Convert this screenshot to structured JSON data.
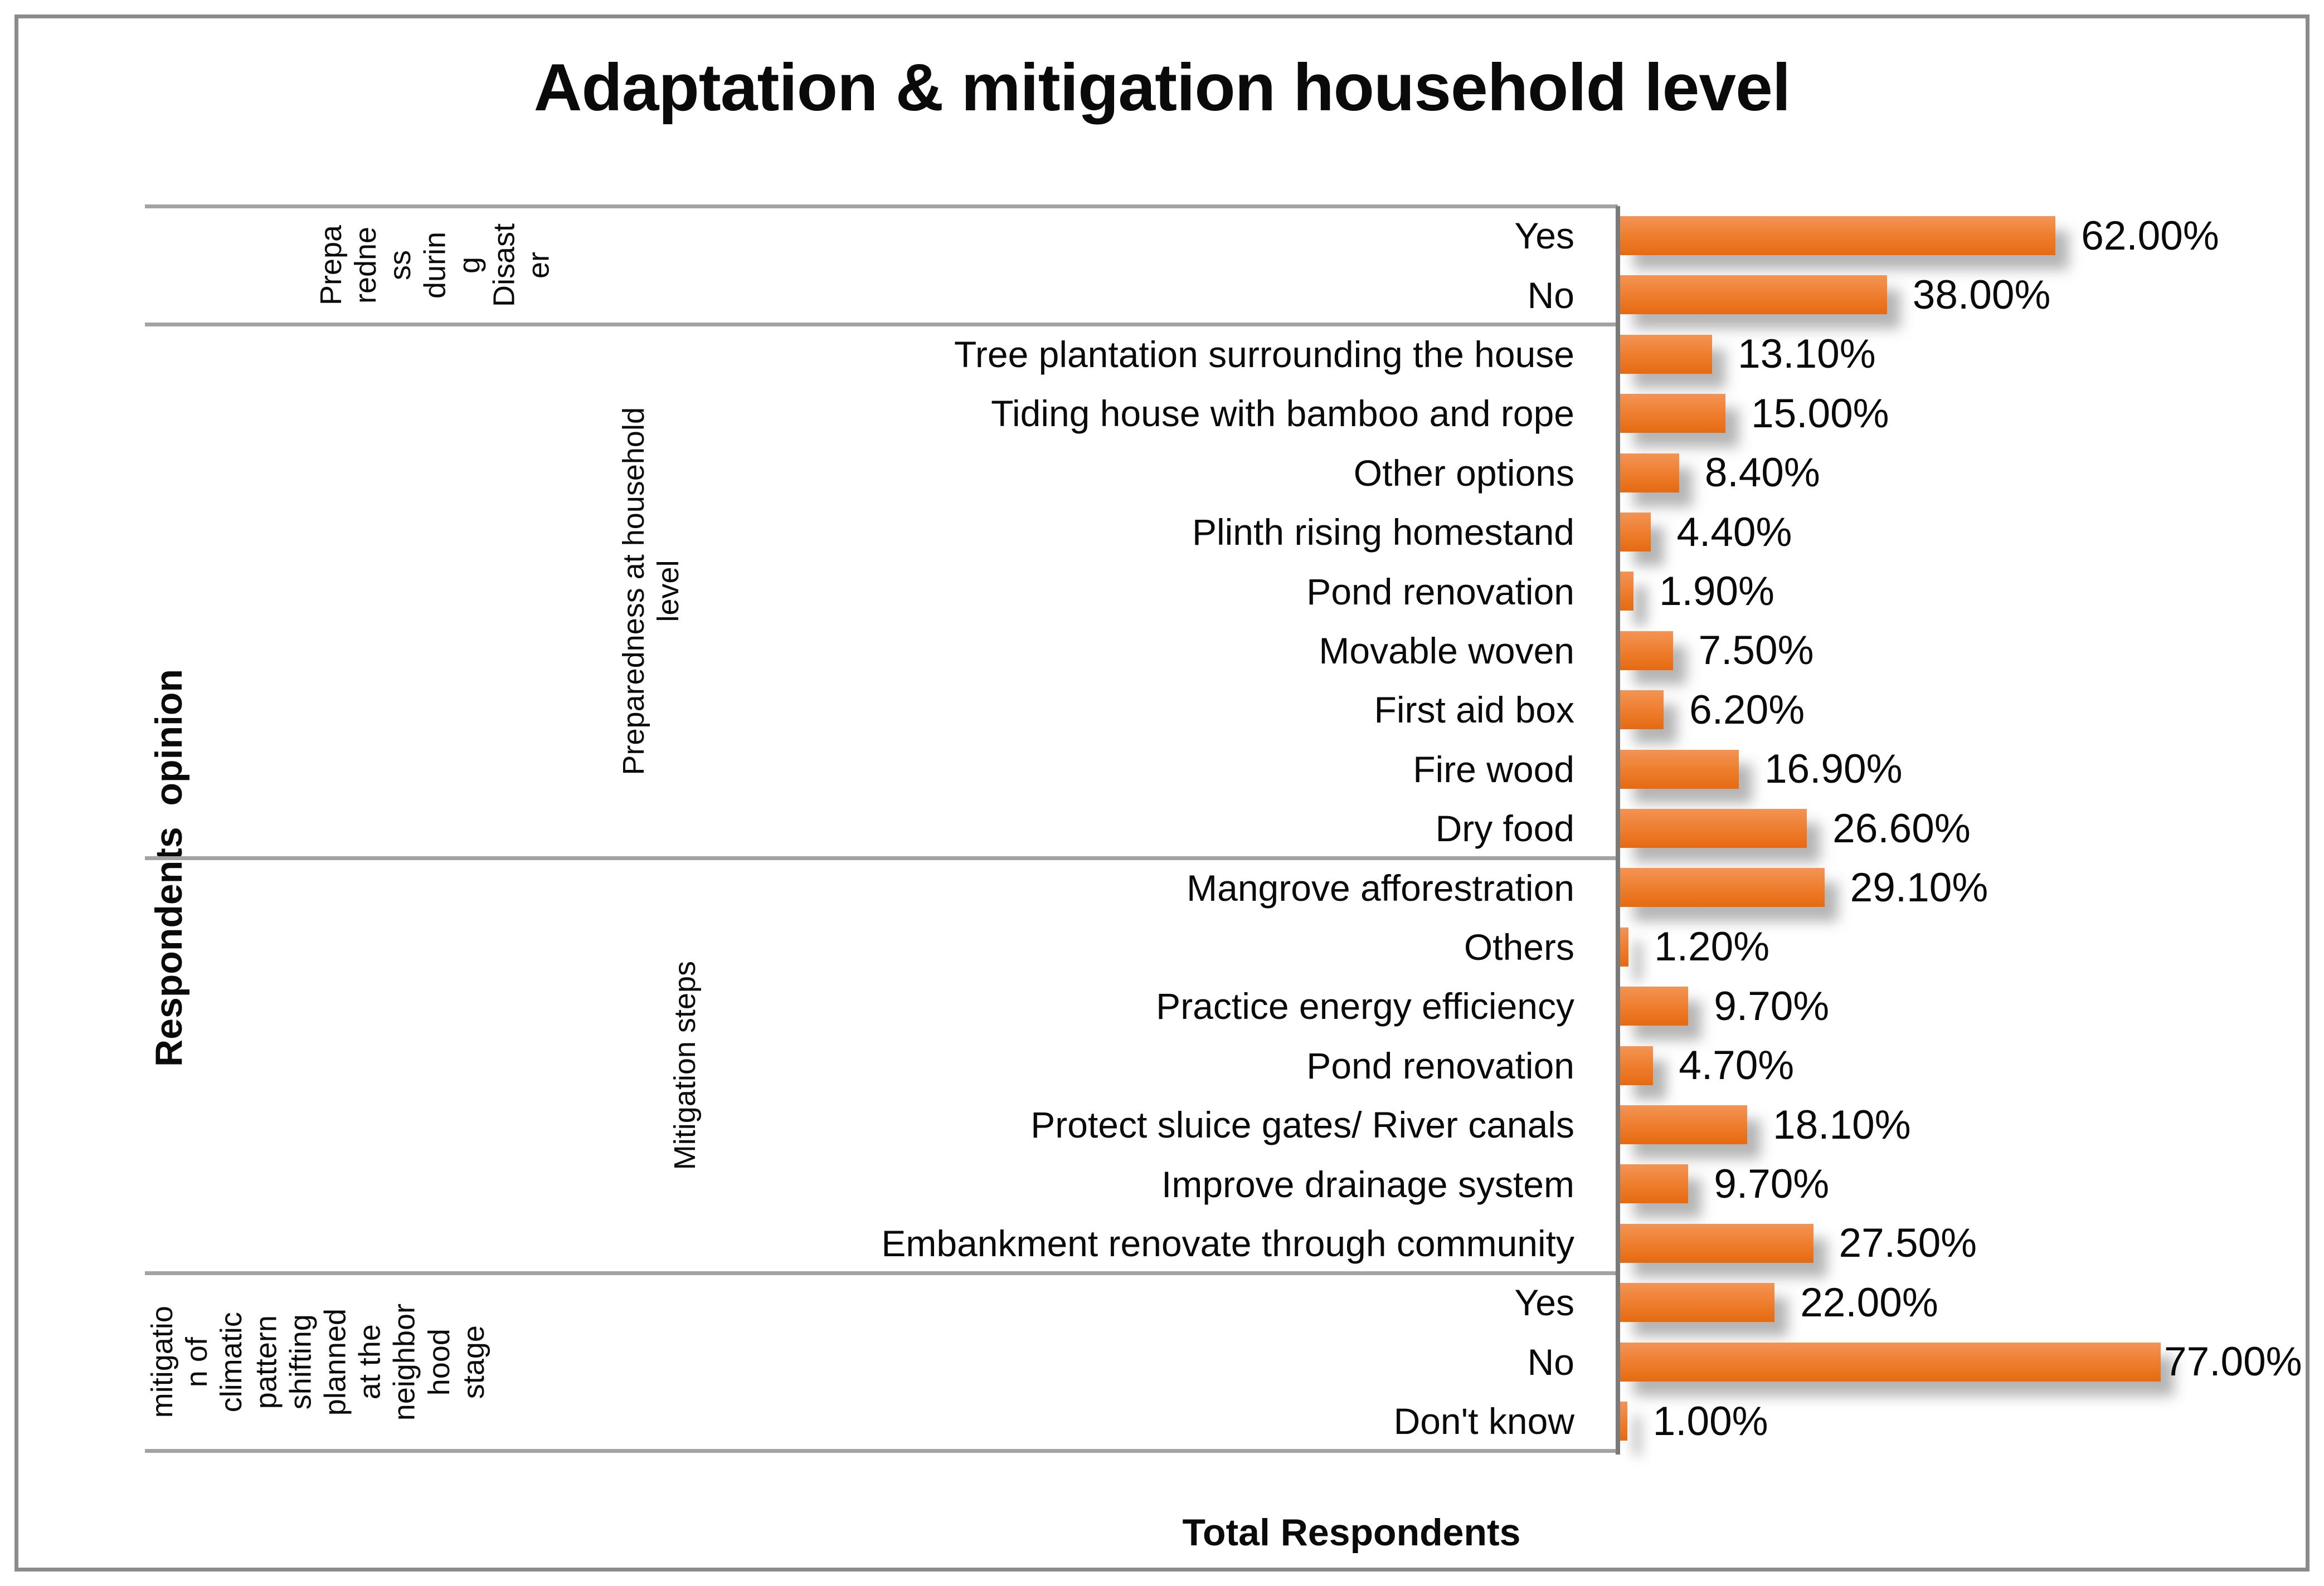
{
  "chart_data": {
    "type": "bar",
    "orientation": "horizontal",
    "title": "Adaptation & mitigation household level",
    "xlabel": "Total Respondents",
    "ylabel": "Respondents  opinion",
    "value_unit": "%",
    "xlim": [
      0,
      100
    ],
    "grid": false,
    "legend": false,
    "bar_color_top": "#f39455",
    "bar_color_bottom": "#e56a12",
    "axis_line_color": "#7a7a7a",
    "divider_color": "#a3a3a3",
    "groups": [
      {
        "label": "Preparedness during Disaster",
        "label_wrapped": "Prepa\nredne\nss\ndurin\ng\nDisast\ner",
        "align": "center",
        "items": [
          {
            "category": "Yes",
            "value": 62.0,
            "value_label": "62.00%"
          },
          {
            "category": "No",
            "value": 38.0,
            "value_label": "38.00%"
          }
        ]
      },
      {
        "label": "Preparedness at household level",
        "label_wrapped": "Preparedness at household\nlevel",
        "align": "right",
        "items": [
          {
            "category": "Tree plantation surrounding the house",
            "value": 13.1,
            "value_label": "13.10%"
          },
          {
            "category": "Tiding house with bamboo and rope",
            "value": 15.0,
            "value_label": "15.00%"
          },
          {
            "category": "Other options",
            "value": 8.4,
            "value_label": "8.40%"
          },
          {
            "category": "Plinth rising homestand",
            "value": 4.4,
            "value_label": "4.40%"
          },
          {
            "category": "Pond renovation",
            "value": 1.9,
            "value_label": "1.90%"
          },
          {
            "category": "Movable woven",
            "value": 7.5,
            "value_label": "7.50%"
          },
          {
            "category": "First aid box",
            "value": 6.2,
            "value_label": "6.20%"
          },
          {
            "category": "Fire wood",
            "value": 16.9,
            "value_label": "16.90%"
          },
          {
            "category": "Dry food",
            "value": 26.6,
            "value_label": "26.60%"
          }
        ]
      },
      {
        "label": "Mitigation steps",
        "label_wrapped": "Mitigation steps",
        "align": "right2",
        "items": [
          {
            "category": "Mangrove afforestration",
            "value": 29.1,
            "value_label": "29.10%"
          },
          {
            "category": "Others",
            "value": 1.2,
            "value_label": "1.20%"
          },
          {
            "category": "Practice energy efficiency",
            "value": 9.7,
            "value_label": "9.70%"
          },
          {
            "category": "Pond renovation",
            "value": 4.7,
            "value_label": "4.70%"
          },
          {
            "category": "Protect sluice gates/ River canals",
            "value": 18.1,
            "value_label": "18.10%"
          },
          {
            "category": "Improve drainage system",
            "value": 9.7,
            "value_label": "9.70%"
          },
          {
            "category": "Embankment renovate through community",
            "value": 27.5,
            "value_label": "27.50%"
          }
        ]
      },
      {
        "label": "mitigation of climatic pattern shifting planned at the neighborhood stage",
        "label_wrapped": "mitigatio\nn of\nclimatic\npattern\nshifting\nplanned\nat the\nneighbor\nhood\nstage",
        "align": "left",
        "items": [
          {
            "category": "Yes",
            "value": 22.0,
            "value_label": "22.00%"
          },
          {
            "category": "No",
            "value": 77.0,
            "value_label": "77.00%"
          },
          {
            "category": "Don't know",
            "value": 1.0,
            "value_label": "1.00%"
          }
        ]
      }
    ]
  }
}
